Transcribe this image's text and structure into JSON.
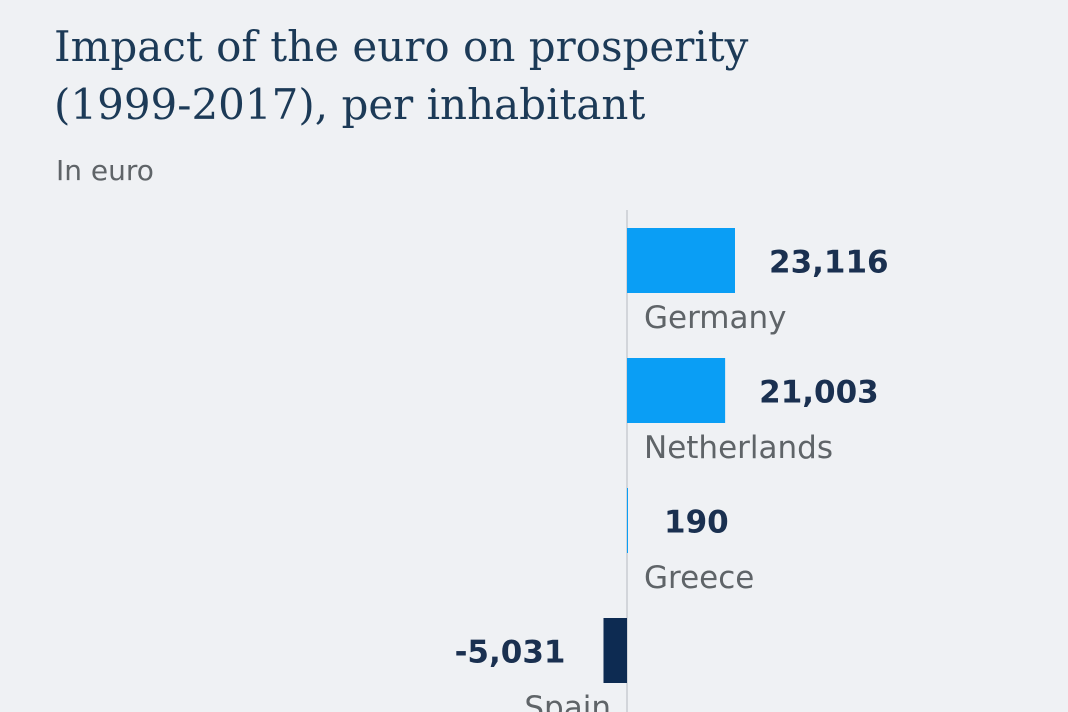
{
  "title_line1": "Impact of the euro on prosperity",
  "title_line2": "(1999-2017), per inhabitant",
  "subtitle": "In euro",
  "colors": {
    "positive": "#0a9ef5",
    "negative": "#0d2b52",
    "value_text": "#1a3050",
    "label_text": "#5f6468",
    "axis": "#c8ccd1"
  },
  "chart_data": {
    "type": "bar",
    "orientation": "horizontal",
    "categories": [
      "Germany",
      "Netherlands",
      "Greece",
      "Spain"
    ],
    "values": [
      23116,
      21003,
      190,
      -5031
    ],
    "value_labels": [
      "23,116",
      "21,003",
      "190",
      "-5,031"
    ],
    "title": "Impact of the euro on prosperity (1999-2017), per inhabitant",
    "subtitle": "In euro",
    "xlabel": "",
    "ylabel": ""
  }
}
